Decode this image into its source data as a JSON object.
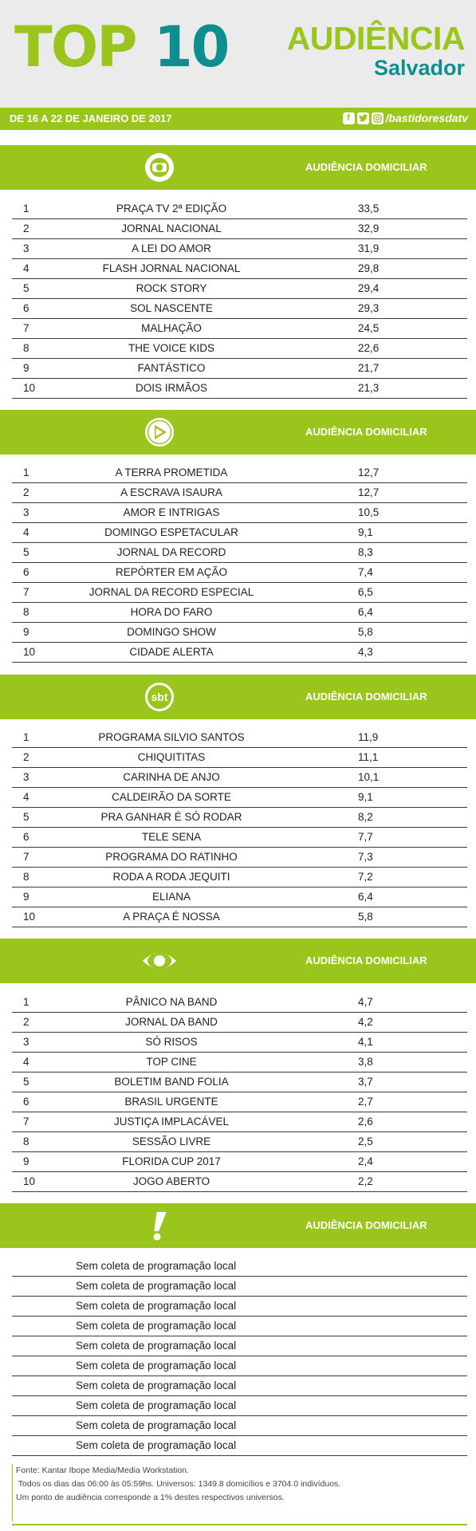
{
  "header": {
    "top_word": "TOP",
    "top_number": "10",
    "audience_title": "AUDIÊNCIA",
    "city": "Salvador",
    "date_range": "DE 16 A 22 DE JANEIRO DE 2017",
    "social_handle": "/bastidoresdatv"
  },
  "colors": {
    "accent_green": "#9ac51c",
    "teal": "#0d8f8e",
    "header_bg": "#ebebeb"
  },
  "sections": [
    {
      "logo": "globo-icon",
      "title": "AUDIÊNCIA DOMICILIAR",
      "rows": [
        {
          "rank": "1",
          "name": "PRAÇA TV 2ª EDIÇÃO",
          "value": "33,5"
        },
        {
          "rank": "2",
          "name": "JORNAL NACIONAL",
          "value": "32,9"
        },
        {
          "rank": "3",
          "name": "A LEI DO AMOR",
          "value": "31,9"
        },
        {
          "rank": "4",
          "name": "FLASH JORNAL NACIONAL",
          "value": "29,8"
        },
        {
          "rank": "5",
          "name": "ROCK STORY",
          "value": "29,4"
        },
        {
          "rank": "6",
          "name": "SOL NASCENTE",
          "value": "29,3"
        },
        {
          "rank": "7",
          "name": "MALHAÇÃO",
          "value": "24,5"
        },
        {
          "rank": "8",
          "name": "THE VOICE KIDS",
          "value": "22,6"
        },
        {
          "rank": "9",
          "name": "FANTÁSTICO",
          "value": "21,7"
        },
        {
          "rank": "10",
          "name": "DOIS IRMÃOS",
          "value": "21,3"
        }
      ]
    },
    {
      "logo": "record-icon",
      "title": "AUDIÊNCIA DOMICILIAR",
      "rows": [
        {
          "rank": "1",
          "name": "A TERRA PROMETIDA",
          "value": "12,7"
        },
        {
          "rank": "2",
          "name": "A ESCRAVA ISAURA",
          "value": "12,7"
        },
        {
          "rank": "3",
          "name": "AMOR E INTRIGAS",
          "value": "10,5"
        },
        {
          "rank": "4",
          "name": "DOMINGO ESPETACULAR",
          "value": "9,1"
        },
        {
          "rank": "5",
          "name": "JORNAL DA RECORD",
          "value": "8,3"
        },
        {
          "rank": "6",
          "name": "REPÓRTER EM AÇÃO",
          "value": "7,4"
        },
        {
          "rank": "7",
          "name": "JORNAL DA RECORD ESPECIAL",
          "value": "6,5"
        },
        {
          "rank": "8",
          "name": "HORA DO FARO",
          "value": "6,4"
        },
        {
          "rank": "9",
          "name": "DOMINGO SHOW",
          "value": "5,8"
        },
        {
          "rank": "10",
          "name": "CIDADE ALERTA",
          "value": "4,3"
        }
      ]
    },
    {
      "logo": "sbt-icon",
      "logo_text": "sbt",
      "title": "AUDIÊNCIA DOMICILIAR",
      "rows": [
        {
          "rank": "1",
          "name": "PROGRAMA SILVIO SANTOS",
          "value": "11,9"
        },
        {
          "rank": "2",
          "name": "CHIQUITITAS",
          "value": "11,1"
        },
        {
          "rank": "3",
          "name": "CARINHA DE ANJO",
          "value": "10,1"
        },
        {
          "rank": "4",
          "name": "CALDEIRÃO DA SORTE",
          "value": "9,1"
        },
        {
          "rank": "5",
          "name": "PRA GANHAR É SÓ RODAR",
          "value": "8,2"
        },
        {
          "rank": "6",
          "name": "TELE SENA",
          "value": "7,7"
        },
        {
          "rank": "7",
          "name": "PROGRAMA DO RATINHO",
          "value": "7,3"
        },
        {
          "rank": "8",
          "name": "RODA A RODA JEQUITI",
          "value": "7,2"
        },
        {
          "rank": "9",
          "name": "ELIANA",
          "value": "6,4"
        },
        {
          "rank": "10",
          "name": "A PRAÇA É NOSSA",
          "value": "5,8"
        }
      ]
    },
    {
      "logo": "band-icon",
      "title": "AUDIÊNCIA DOMICILIAR",
      "rows": [
        {
          "rank": "1",
          "name": "PÂNICO NA BAND",
          "value": "4,7"
        },
        {
          "rank": "2",
          "name": "JORNAL DA BAND",
          "value": "4,2"
        },
        {
          "rank": "3",
          "name": "SÓ RISOS",
          "value": "4,1"
        },
        {
          "rank": "4",
          "name": "TOP CINE",
          "value": "3,8"
        },
        {
          "rank": "5",
          "name": "BOLETIM BAND FOLIA",
          "value": "3,7"
        },
        {
          "rank": "6",
          "name": "BRASIL URGENTE",
          "value": "2,7"
        },
        {
          "rank": "7",
          "name": "JUSTIÇA IMPLACÁVEL",
          "value": "2,6"
        },
        {
          "rank": "8",
          "name": "SESSÃO LIVRE",
          "value": "2,5"
        },
        {
          "rank": "9",
          "name": "FLORIDA CUP 2017",
          "value": "2,4"
        },
        {
          "rank": "10",
          "name": "JOGO ABERTO",
          "value": "2,2"
        }
      ]
    },
    {
      "logo": "redetv-exclamation-icon",
      "title": "AUDIÊNCIA DOMICILIAR",
      "notes": [
        "Sem coleta de programação local",
        "Sem coleta de programação local",
        "Sem coleta de programação local",
        "Sem coleta de programação local",
        "Sem coleta de programação local",
        "Sem coleta de programação local",
        "Sem coleta de programação local",
        "Sem coleta de programação local",
        "Sem coleta de programação local",
        "Sem coleta de programação local"
      ]
    }
  ],
  "footer": {
    "line1": "Fonte: Kantar Ibope Media/Media Workstation.",
    "line2": " Todos os dias das 06:00 às 05:59hs. Universos: 1349.8 domicílios e 3704.0 indivíduos.",
    "line3": "Um ponto de audiência corresponde a 1% destes respectivos universos."
  }
}
